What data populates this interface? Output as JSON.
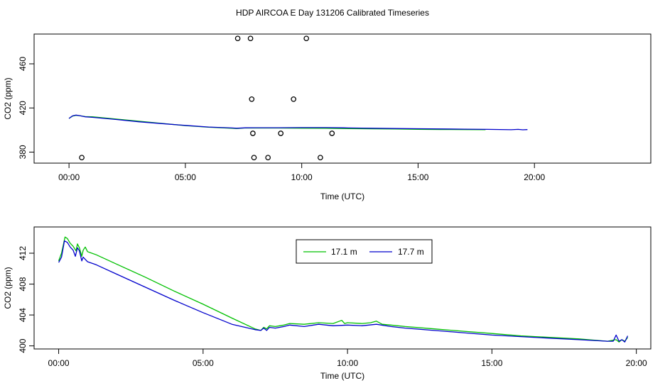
{
  "title": "HDP AIRCOA E  Day 131206  Calibrated Timeseries",
  "chart_data": [
    {
      "type": "scatter+line",
      "xlabel": "Time (UTC)",
      "ylabel": "CO2 (ppm)",
      "xlim": [
        -1.5,
        25.0
      ],
      "ylim": [
        370,
        487
      ],
      "x_ticks": [
        0,
        5,
        10,
        15,
        20
      ],
      "x_tick_labels": [
        "00:00",
        "05:00",
        "10:00",
        "15:00",
        "20:00"
      ],
      "y_ticks": [
        380,
        420,
        460
      ],
      "y_tick_labels": [
        "380",
        "420",
        "460"
      ],
      "grid": false,
      "series": [
        {
          "color": "#00c000",
          "x": [
            0.0,
            0.15,
            0.3,
            0.45,
            0.7,
            1.0,
            2.0,
            3.0,
            4.0,
            5.0,
            6.0,
            7.0,
            7.2,
            7.6,
            8.0,
            9.0,
            10.0,
            11.0,
            12.0,
            13.0,
            14.0,
            15.0,
            16.0,
            17.0,
            17.9
          ],
          "y": [
            410.5,
            412.6,
            413.3,
            413.0,
            412.2,
            412.0,
            410.0,
            408.0,
            406.0,
            404.0,
            402.5,
            401.6,
            401.4,
            401.9,
            401.8,
            401.8,
            401.7,
            401.6,
            401.3,
            401.1,
            400.9,
            400.6,
            400.5,
            400.4,
            400.3
          ]
        },
        {
          "color": "#0000cc",
          "x": [
            0.0,
            0.15,
            0.3,
            0.45,
            0.7,
            1.0,
            2.0,
            3.0,
            4.0,
            5.0,
            6.0,
            7.0,
            7.2,
            7.6,
            8.0,
            9.0,
            10.0,
            11.0,
            11.8,
            12.0,
            13.0,
            14.0,
            15.0,
            16.0,
            17.0,
            18.0,
            19.0,
            19.3,
            19.5,
            19.7
          ],
          "y": [
            410.5,
            412.8,
            413.5,
            413.1,
            412.0,
            411.5,
            409.6,
            407.5,
            405.8,
            404.2,
            402.7,
            401.9,
            401.6,
            402.0,
            402.1,
            402.1,
            402.2,
            402.2,
            402.0,
            401.9,
            401.6,
            401.4,
            401.2,
            401.0,
            400.8,
            400.6,
            400.3,
            400.6,
            400.2,
            400.4
          ]
        }
      ],
      "points": {
        "x": [
          0.55,
          7.25,
          7.8,
          10.2,
          7.85,
          9.65,
          7.9,
          9.1,
          11.3,
          7.95,
          8.55,
          10.8
        ],
        "y": [
          375,
          483,
          483,
          483,
          428,
          428,
          397,
          397,
          397,
          375,
          375,
          375
        ]
      }
    },
    {
      "type": "line",
      "xlabel": "Time (UTC)",
      "ylabel": "CO2 (ppm)",
      "xlim": [
        -0.85,
        20.5
      ],
      "ylim": [
        399.6,
        415.4
      ],
      "x_ticks": [
        0,
        5,
        10,
        15,
        20
      ],
      "x_tick_labels": [
        "00:00",
        "05:00",
        "10:00",
        "15:00",
        "20:00"
      ],
      "y_ticks": [
        400,
        404,
        408,
        412
      ],
      "y_tick_labels": [
        "400",
        "404",
        "408",
        "412"
      ],
      "grid": false,
      "legend": {
        "position": "top-center"
      },
      "series": [
        {
          "name": "17.1 m",
          "color": "#00c000",
          "x": [
            0.0,
            0.1,
            0.22,
            0.3,
            0.4,
            0.5,
            0.6,
            0.65,
            0.72,
            0.8,
            0.85,
            0.92,
            1.0,
            1.3,
            2.0,
            3.0,
            4.0,
            5.0,
            6.0,
            6.8,
            7.0,
            7.1,
            7.2,
            7.3,
            7.5,
            7.8,
            8.0,
            8.5,
            9.0,
            9.5,
            9.8,
            9.9,
            10.0,
            10.5,
            10.8,
            11.0,
            11.2,
            11.5,
            12.0,
            13.0,
            14.0,
            15.0,
            16.0,
            17.0,
            18.0,
            19.0,
            19.3,
            19.4,
            19.5,
            19.6,
            19.7
          ],
          "y": [
            411.0,
            412.0,
            414.1,
            413.9,
            413.3,
            412.9,
            412.3,
            413.2,
            412.7,
            411.6,
            412.4,
            412.8,
            412.2,
            411.8,
            410.6,
            408.9,
            407.1,
            405.4,
            403.6,
            402.2,
            402.0,
            402.4,
            402.2,
            402.6,
            402.5,
            402.7,
            402.9,
            402.8,
            403.0,
            402.9,
            403.3,
            402.9,
            403.0,
            402.9,
            403.0,
            403.2,
            402.8,
            402.7,
            402.5,
            402.2,
            401.9,
            401.6,
            401.3,
            401.1,
            400.9,
            400.6,
            400.8,
            400.5,
            400.8,
            400.6,
            401.1
          ]
        },
        {
          "name": "17.7 m",
          "color": "#0000cc",
          "x": [
            0.0,
            0.1,
            0.2,
            0.3,
            0.4,
            0.5,
            0.58,
            0.65,
            0.72,
            0.8,
            0.85,
            0.92,
            1.0,
            1.3,
            2.0,
            3.0,
            4.0,
            5.0,
            6.0,
            6.8,
            7.0,
            7.1,
            7.2,
            7.3,
            7.5,
            7.8,
            8.0,
            8.5,
            9.0,
            9.5,
            10.0,
            10.5,
            11.0,
            11.5,
            12.0,
            13.0,
            14.0,
            15.0,
            16.0,
            17.0,
            18.0,
            19.0,
            19.2,
            19.3,
            19.4,
            19.5,
            19.6,
            19.7
          ],
          "y": [
            410.8,
            411.5,
            413.6,
            413.4,
            412.8,
            412.4,
            411.6,
            412.7,
            412.3,
            411.0,
            411.5,
            411.2,
            410.9,
            410.5,
            409.3,
            407.6,
            405.9,
            404.3,
            402.8,
            402.1,
            402.0,
            402.3,
            402.0,
            402.4,
            402.3,
            402.5,
            402.7,
            402.5,
            402.8,
            402.6,
            402.7,
            402.6,
            402.8,
            402.5,
            402.3,
            402.0,
            401.7,
            401.4,
            401.2,
            401.0,
            400.8,
            400.6,
            400.6,
            401.4,
            400.6,
            400.8,
            400.5,
            401.3
          ]
        }
      ]
    }
  ]
}
